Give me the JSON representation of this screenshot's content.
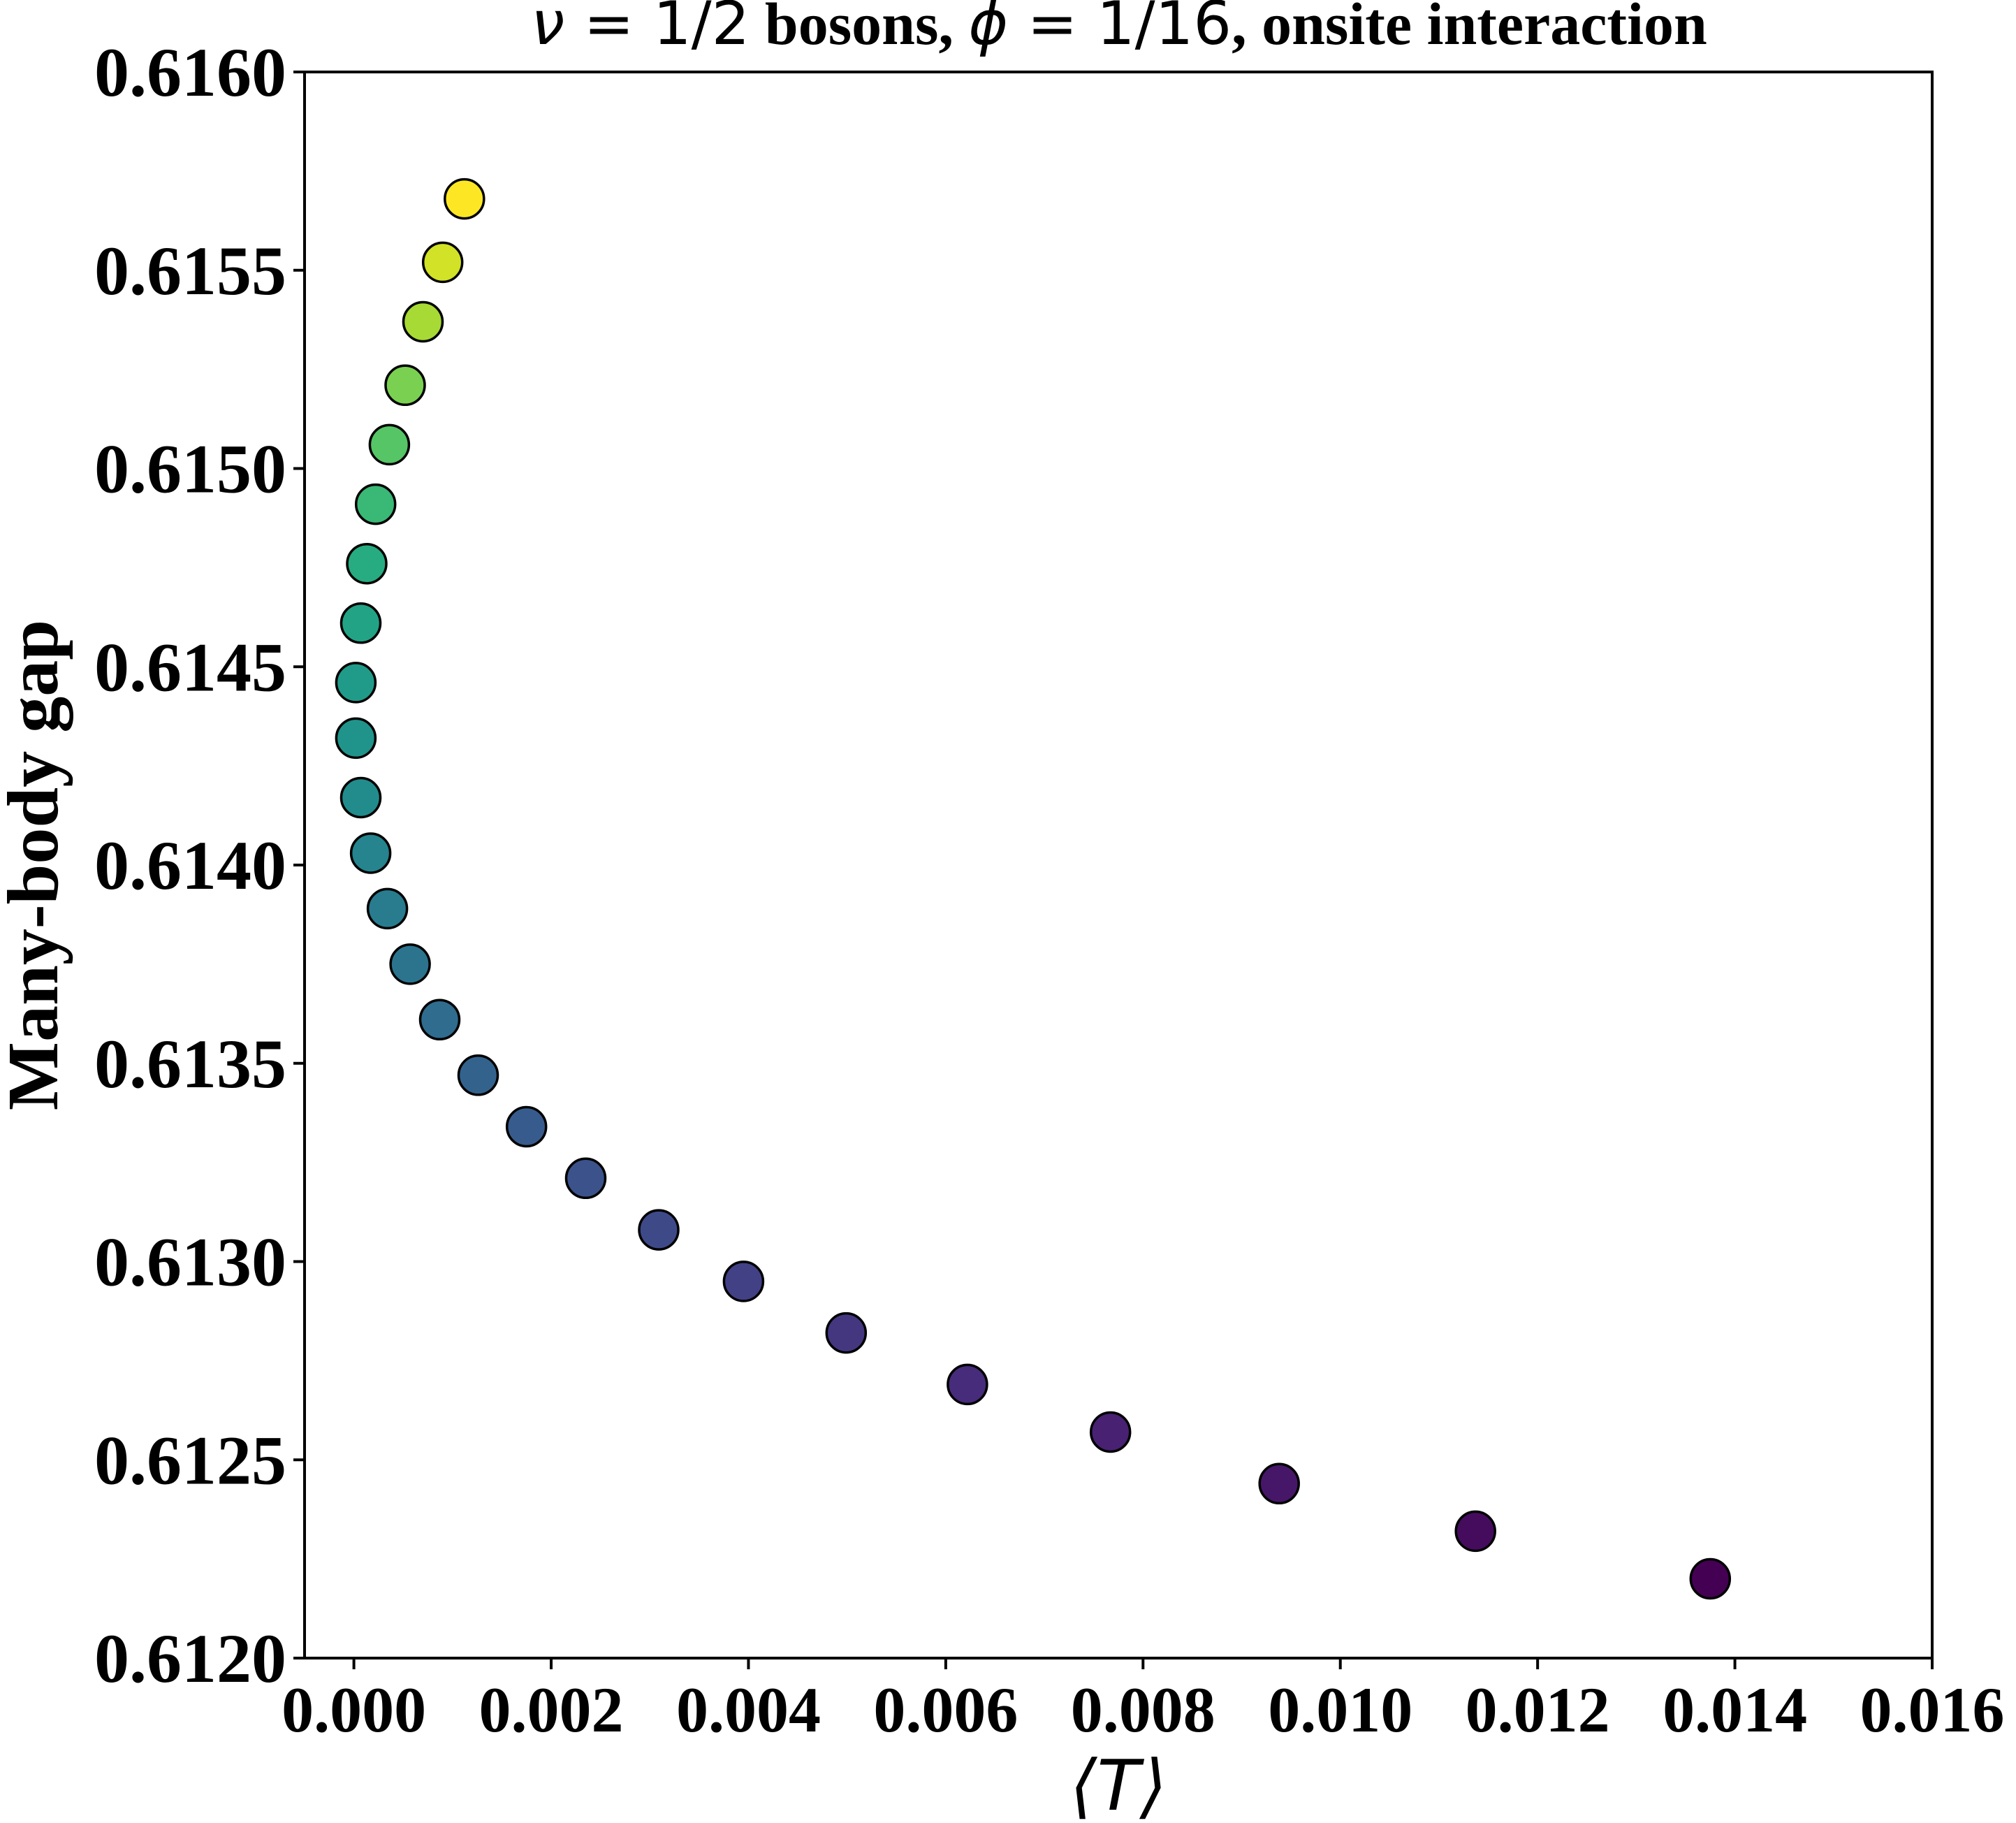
{
  "chart_data": {
    "type": "scatter",
    "title": {
      "nu_symbol": "ν",
      "nu_value": " = 1/2",
      "text_middle": " bosons, ",
      "phi_symbol": "ϕ",
      "phi_value": " = 1/16",
      "text_end": ", onsite interaction"
    },
    "xlabel": "⟨T⟩",
    "ylabel": "Many-body gap",
    "xlim": [
      -0.0005,
      0.016
    ],
    "ylim": [
      0.612,
      0.616
    ],
    "x_ticks": [
      0.0,
      0.002,
      0.004,
      0.006,
      0.008,
      0.01,
      0.012,
      0.014,
      0.016
    ],
    "x_tick_labels": [
      "0.000",
      "0.002",
      "0.004",
      "0.006",
      "0.008",
      "0.010",
      "0.012",
      "0.014",
      "0.016"
    ],
    "y_ticks": [
      0.612,
      0.6125,
      0.613,
      0.6135,
      0.614,
      0.6145,
      0.615,
      0.6155,
      0.616
    ],
    "y_tick_labels": [
      "0.6120",
      "0.6125",
      "0.6130",
      "0.6135",
      "0.6140",
      "0.6145",
      "0.6150",
      "0.6155",
      "0.6160"
    ],
    "grid": false,
    "colormap": "viridis",
    "marker_edge_color": "#000000",
    "points": [
      {
        "x": 0.01375,
        "y": 0.6122
      },
      {
        "x": 0.01137,
        "y": 0.61232
      },
      {
        "x": 0.00938,
        "y": 0.61244
      },
      {
        "x": 0.00767,
        "y": 0.61257
      },
      {
        "x": 0.00622,
        "y": 0.61269
      },
      {
        "x": 0.00499,
        "y": 0.61282
      },
      {
        "x": 0.00395,
        "y": 0.61295
      },
      {
        "x": 0.00309,
        "y": 0.61308
      },
      {
        "x": 0.00235,
        "y": 0.61321
      },
      {
        "x": 0.00175,
        "y": 0.61334
      },
      {
        "x": 0.00126,
        "y": 0.61347
      },
      {
        "x": 0.00087,
        "y": 0.61361
      },
      {
        "x": 0.00057,
        "y": 0.61375
      },
      {
        "x": 0.00034,
        "y": 0.61389
      },
      {
        "x": 0.00017,
        "y": 0.61403
      },
      {
        "x": 7e-05,
        "y": 0.61417
      },
      {
        "x": 2e-05,
        "y": 0.61432
      },
      {
        "x": 2e-05,
        "y": 0.61446
      },
      {
        "x": 7e-05,
        "y": 0.61461
      },
      {
        "x": 0.00013,
        "y": 0.61476
      },
      {
        "x": 0.00022,
        "y": 0.61491
      },
      {
        "x": 0.00036,
        "y": 0.61506
      },
      {
        "x": 0.00052,
        "y": 0.61521
      },
      {
        "x": 0.0007,
        "y": 0.61537
      },
      {
        "x": 0.0009,
        "y": 0.61552
      },
      {
        "x": 0.00112,
        "y": 0.61568
      }
    ]
  }
}
